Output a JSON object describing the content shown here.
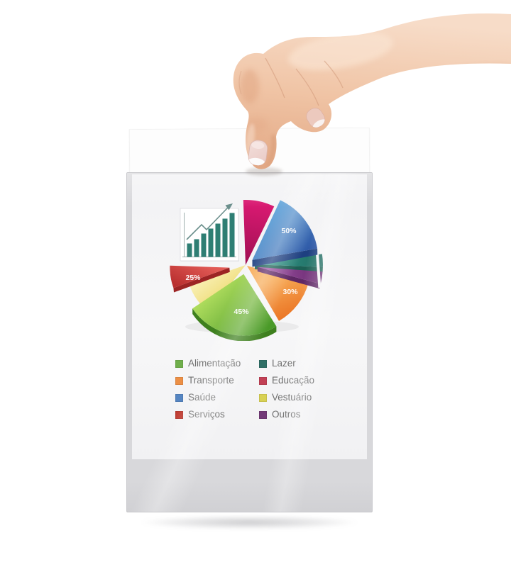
{
  "scene": {
    "description": "Hand holding a clear plastic document sleeve containing a sheet with a 3D exploded pie chart and a category legend",
    "background_color": "#ffffff",
    "sleeve_plastic_color": "#d8d8db",
    "document_color": "#f5f5f6"
  },
  "chart_data": [
    {
      "type": "pie",
      "title": "",
      "legend_position": "below",
      "slices": [
        {
          "label": "Educação",
          "color": "#c2185b",
          "value_label": ""
        },
        {
          "label": "Saúde",
          "color": "#3a6fb5",
          "value_label": "50%"
        },
        {
          "label": "Lazer",
          "color": "#2a8578",
          "value_label": ""
        },
        {
          "label": "Outros",
          "color": "#83398a",
          "value_label": ""
        },
        {
          "label": "Transporte",
          "color": "#f08c38",
          "value_label": "30%"
        },
        {
          "label": "Alimentação",
          "color": "#6fb33f",
          "value_label": "45%"
        },
        {
          "label": "Vestuário",
          "color": "#f2e18e",
          "value_label": ""
        },
        {
          "label": "Serviços",
          "color": "#cc4444",
          "value_label": "25%"
        }
      ]
    },
    {
      "type": "bar",
      "title": "",
      "values": [
        19,
        25,
        33,
        40,
        47,
        54,
        62
      ],
      "trend": "up",
      "bar_color": "#2e7e73"
    }
  ],
  "legend": {
    "items": [
      {
        "label": "Alimentação",
        "color": "#6fae4b"
      },
      {
        "label": "Lazer",
        "color": "#2f6f66"
      },
      {
        "label": "Transporte",
        "color": "#ec8f45"
      },
      {
        "label": "Educação",
        "color": "#c24055"
      },
      {
        "label": "Saúde",
        "color": "#5585c2"
      },
      {
        "label": "Vestuário",
        "color": "#d8d154"
      },
      {
        "label": "Serviços",
        "color": "#bf3b31"
      },
      {
        "label": "Outros",
        "color": "#733a78"
      }
    ]
  }
}
